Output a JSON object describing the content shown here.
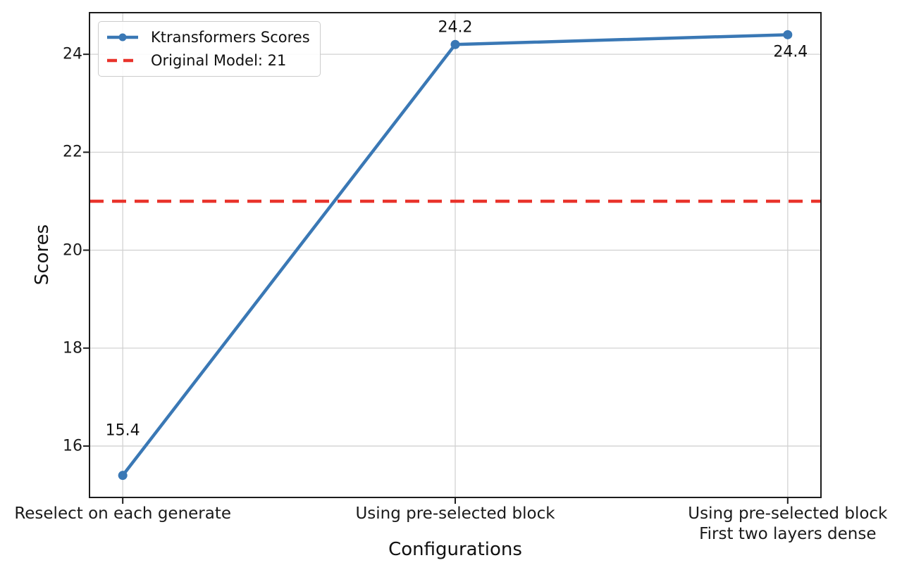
{
  "chart_data": {
    "type": "line",
    "title": "",
    "xlabel": "Configurations",
    "ylabel": "Scores",
    "categories": [
      "Reselect on each generate",
      "Using pre-selected block",
      "Using pre-selected block\nFirst two layers dense"
    ],
    "series": [
      {
        "name": "Ktransformers Scores",
        "values": [
          15.4,
          24.2,
          24.4
        ],
        "color": "#3a78b5",
        "marker": "circle",
        "style": "solid"
      }
    ],
    "reference_line": {
      "label": "Original Model: 21",
      "value": 21,
      "color": "#e9332b",
      "style": "dashed"
    },
    "data_labels": [
      "15.4",
      "24.2",
      "24.4"
    ],
    "yticks": [
      "16",
      "18",
      "20",
      "22",
      "24"
    ],
    "ylim": [
      14.95,
      24.85
    ],
    "xlim": [
      -0.1,
      2.1
    ],
    "grid": true,
    "grid_color": "#d2d2d2",
    "axis_color": "#1c1c1c",
    "legend_position": "upper-left",
    "legend": {
      "entries": [
        "Ktransformers Scores",
        "Original Model: 21"
      ]
    }
  }
}
